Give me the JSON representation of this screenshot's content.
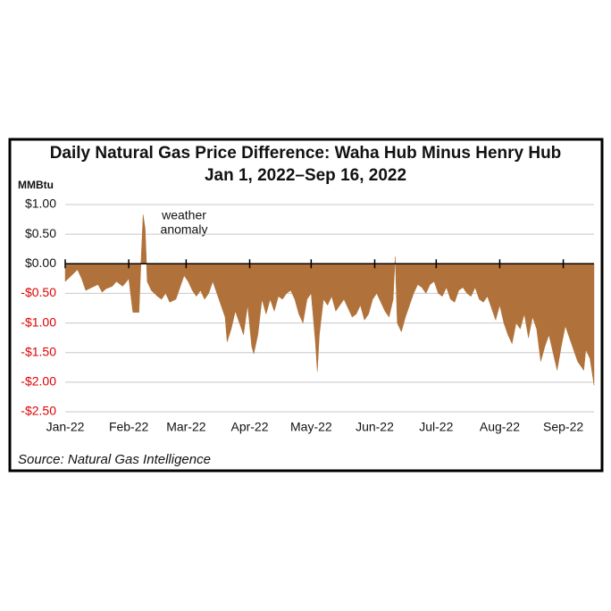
{
  "chart_data": {
    "type": "area",
    "title": "Daily Natural Gas Price Difference: Waha Hub Minus Henry Hub",
    "subtitle": "Jan 1, 2022–Sep 16, 2022",
    "y_label": "MMBtu",
    "annotation": [
      "weather",
      "anomaly"
    ],
    "source": "Source: Natural Gas Intelligence",
    "color": "#b0723a",
    "grid": true,
    "negative_tick_color": "#e00000",
    "xlim": [
      0,
      258
    ],
    "xticks": [
      {
        "value": 0,
        "label": "Jan-22"
      },
      {
        "value": 31,
        "label": "Feb-22"
      },
      {
        "value": 59,
        "label": "Mar-22"
      },
      {
        "value": 90,
        "label": "Apr-22"
      },
      {
        "value": 120,
        "label": "May-22"
      },
      {
        "value": 151,
        "label": "Jun-22"
      },
      {
        "value": 181,
        "label": "Jul-22"
      },
      {
        "value": 212,
        "label": "Aug-22"
      },
      {
        "value": 243,
        "label": "Sep-22"
      }
    ],
    "ylim": [
      -2.5,
      1.0
    ],
    "yticks": [
      {
        "value": 1.0,
        "label": "$1.00"
      },
      {
        "value": 0.5,
        "label": "$0.50"
      },
      {
        "value": 0,
        "label": "$0.00"
      },
      {
        "value": -0.5,
        "label": "-$0.50"
      },
      {
        "value": -1.0,
        "label": "-$1.00"
      },
      {
        "value": -1.5,
        "label": "-$1.50"
      },
      {
        "value": -2.0,
        "label": "-$2.00"
      },
      {
        "value": -2.5,
        "label": "-$2.50"
      }
    ],
    "x": [
      0,
      3,
      6,
      8,
      10,
      13,
      16,
      18,
      20,
      23,
      25,
      28,
      30,
      31,
      33,
      36,
      37,
      38,
      39,
      40,
      42,
      45,
      47,
      49,
      51,
      54,
      56,
      58,
      60,
      62,
      64,
      66,
      68,
      70,
      72,
      74,
      76,
      78,
      79,
      81,
      83,
      85,
      87,
      89,
      91,
      92,
      94,
      96,
      98,
      100,
      102,
      104,
      106,
      108,
      110,
      112,
      114,
      116,
      118,
      120,
      122,
      123,
      124,
      126,
      128,
      130,
      132,
      134,
      136,
      138,
      140,
      142,
      144,
      146,
      148,
      150,
      152,
      154,
      156,
      158,
      160,
      161,
      162,
      164,
      166,
      168,
      170,
      172,
      174,
      176,
      178,
      180,
      182,
      184,
      186,
      188,
      190,
      192,
      194,
      196,
      198,
      200,
      202,
      204,
      206,
      208,
      210,
      212,
      214,
      216,
      218,
      220,
      222,
      224,
      226,
      228,
      230,
      232,
      234,
      236,
      238,
      240,
      242,
      244,
      246,
      248,
      250,
      252,
      253,
      254,
      256,
      258
    ],
    "values": [
      -0.3,
      -0.2,
      -0.1,
      -0.25,
      -0.45,
      -0.4,
      -0.35,
      -0.48,
      -0.42,
      -0.38,
      -0.3,
      -0.38,
      -0.3,
      -0.25,
      -0.82,
      -0.82,
      0.05,
      0.83,
      0.6,
      -0.3,
      -0.45,
      -0.55,
      -0.6,
      -0.5,
      -0.65,
      -0.6,
      -0.4,
      -0.2,
      -0.3,
      -0.45,
      -0.55,
      -0.45,
      -0.6,
      -0.5,
      -0.3,
      -0.5,
      -0.7,
      -0.9,
      -1.32,
      -1.1,
      -0.8,
      -1.0,
      -1.2,
      -0.7,
      -1.4,
      -1.52,
      -1.2,
      -0.6,
      -0.85,
      -0.6,
      -0.8,
      -0.55,
      -0.6,
      -0.5,
      -0.45,
      -0.6,
      -0.85,
      -1.0,
      -0.6,
      -0.5,
      -1.3,
      -1.82,
      -1.2,
      -0.6,
      -0.7,
      -0.55,
      -0.8,
      -0.7,
      -0.6,
      -0.75,
      -0.9,
      -0.85,
      -0.7,
      -0.95,
      -0.85,
      -0.6,
      -0.5,
      -0.65,
      -0.8,
      -0.9,
      -0.6,
      0.12,
      -1.0,
      -1.15,
      -0.9,
      -0.7,
      -0.5,
      -0.35,
      -0.4,
      -0.5,
      -0.35,
      -0.3,
      -0.5,
      -0.55,
      -0.4,
      -0.6,
      -0.65,
      -0.45,
      -0.4,
      -0.5,
      -0.55,
      -0.4,
      -0.6,
      -0.65,
      -0.55,
      -0.75,
      -0.95,
      -0.7,
      -1.0,
      -1.2,
      -1.35,
      -1.0,
      -1.1,
      -0.85,
      -1.25,
      -0.9,
      -1.1,
      -1.65,
      -1.4,
      -1.2,
      -1.5,
      -1.8,
      -1.4,
      -1.05,
      -1.25,
      -1.45,
      -1.65,
      -1.75,
      -1.8,
      -1.45,
      -1.6,
      -2.05
    ]
  }
}
